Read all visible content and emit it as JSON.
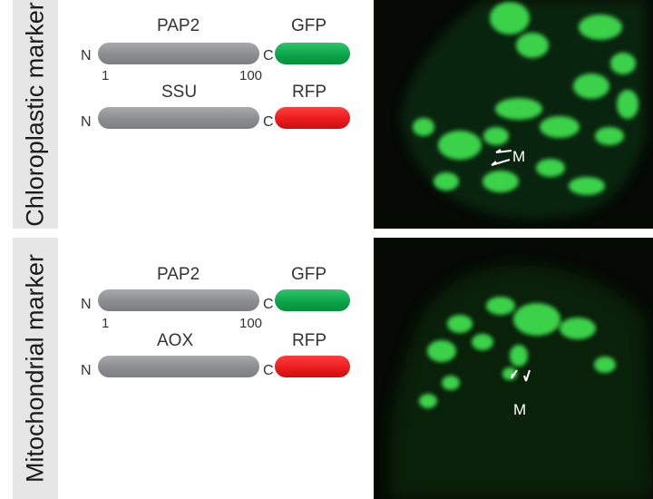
{
  "top": {
    "side_label": "Chloroplastic marker",
    "construct1": {
      "protein": "PAP2",
      "tag": "GFP",
      "n": "N",
      "c": "C",
      "start": "1",
      "end": "100",
      "tag_color": "#0aa347"
    },
    "construct2": {
      "protein": "SSU",
      "tag": "RFP",
      "n": "N",
      "c": "C",
      "tag_color": "#e81a1a"
    },
    "image_label": "M"
  },
  "bottom": {
    "side_label": "Mitochondrial marker",
    "construct1": {
      "protein": "PAP2",
      "tag": "GFP",
      "n": "N",
      "c": "C",
      "start": "1",
      "end": "100",
      "tag_color": "#0aa347"
    },
    "construct2": {
      "protein": "AOX",
      "tag": "RFP",
      "n": "N",
      "c": "C",
      "tag_color": "#e81a1a"
    },
    "image_label": "M"
  }
}
